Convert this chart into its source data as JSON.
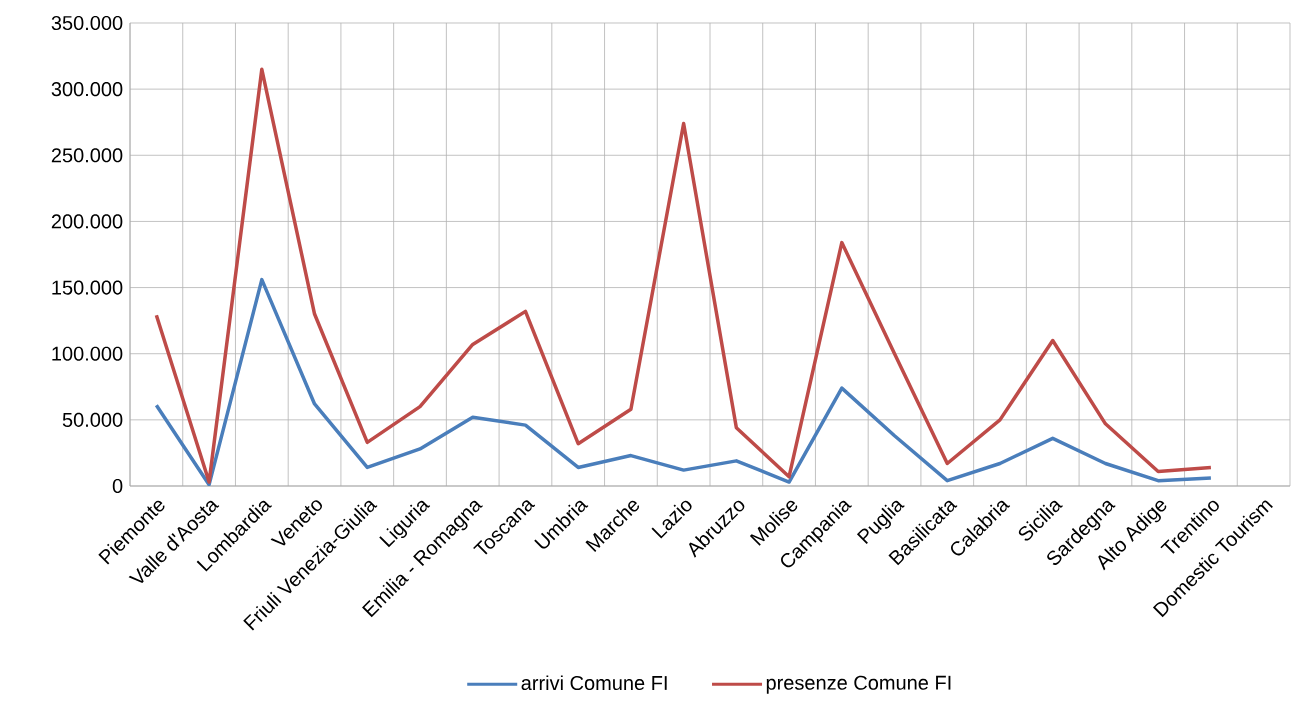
{
  "chart_data": {
    "type": "line",
    "categories": [
      "Piemonte",
      "Valle d'Aosta",
      "Lombardia",
      "Veneto",
      "Friuli Venezia-Giulia",
      "Liguria",
      "Emilia - Romagna",
      "Toscana",
      "Umbria",
      "Marche",
      "Lazio",
      "Abruzzo",
      "Molise",
      "Campania",
      "Puglia",
      "Basilicata",
      "Calabria",
      "Sicilia",
      "Sardegna",
      "Alto Adige",
      "Trentino",
      "Domestic Tourism"
    ],
    "series": [
      {
        "name": "arrivi Comune FI",
        "color": "#4a7ebb",
        "values": [
          61000,
          1000,
          156000,
          62000,
          14000,
          28000,
          52000,
          46000,
          14000,
          23000,
          12000,
          19000,
          3000,
          74000,
          38000,
          4000,
          17000,
          36000,
          17000,
          4000,
          6000,
          null
        ]
      },
      {
        "name": "presenze Comune FI",
        "color": "#be4b48",
        "values": [
          129000,
          3000,
          315000,
          130000,
          33000,
          60000,
          107000,
          132000,
          32000,
          58000,
          274000,
          44000,
          7000,
          184000,
          100000,
          17000,
          50000,
          110000,
          47000,
          11000,
          14000,
          null
        ]
      }
    ],
    "ylim": [
      0,
      350000
    ],
    "yticks": [
      {
        "value": 0,
        "label": "0"
      },
      {
        "value": 50000,
        "label": "50.000"
      },
      {
        "value": 100000,
        "label": "100.000"
      },
      {
        "value": 150000,
        "label": "150.000"
      },
      {
        "value": 200000,
        "label": "200.000"
      },
      {
        "value": 250000,
        "label": "250.000"
      },
      {
        "value": 300000,
        "label": "300.000"
      },
      {
        "value": 350000,
        "label": "350.000"
      }
    ],
    "grid": true,
    "legend": "bottom",
    "marker": "none",
    "line_style": "solid"
  }
}
